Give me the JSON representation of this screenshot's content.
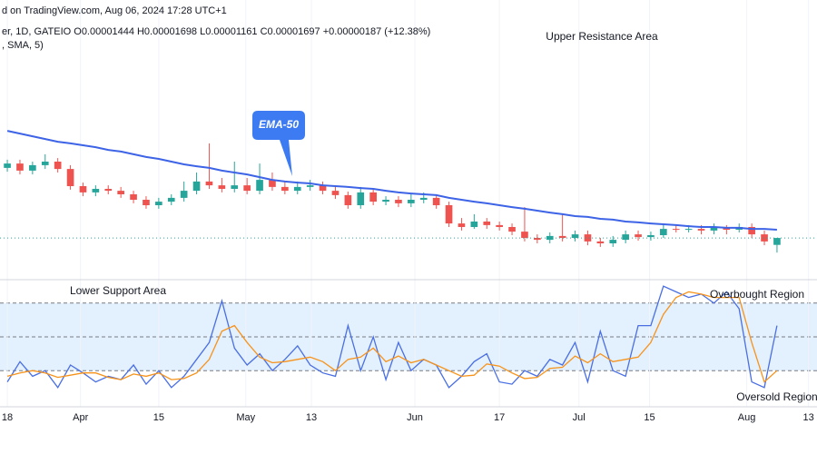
{
  "chart_data": [
    {
      "type": "candlestick",
      "source": "d on TradingView.com, Aug 06, 2024 17:28 UTC+1",
      "symbol_line": "er, 1D, GATEIO  O0.00001444  H0.00001698  L0.00001161  C0.00001697  +0.00000187 (+12.38%)",
      "annotations": [
        "Upper Resistance Area"
      ],
      "xlim": [
        -0.58,
        64.17
      ],
      "ylim": [
        2e-06,
        9.6e-05
      ],
      "up_color": "#26a69a",
      "down_color": "#ef5350",
      "open": [
        4.27e-05,
        4.43e-05,
        4.17e-05,
        4.37e-05,
        4.5e-05,
        4.23e-05,
        3.6e-05,
        3.37e-05,
        3.5e-05,
        3.43e-05,
        3.3e-05,
        3.1e-05,
        2.9e-05,
        3.03e-05,
        3.17e-05,
        3.43e-05,
        3.77e-05,
        3.63e-05,
        3.5e-05,
        3.63e-05,
        3.43e-05,
        3.83e-05,
        3.57e-05,
        3.43e-05,
        3.57e-05,
        3.63e-05,
        3.43e-05,
        3.27e-05,
        2.9e-05,
        3.37e-05,
        3.03e-05,
        3.1e-05,
        2.97e-05,
        3.1e-05,
        3.17e-05,
        2.9e-05,
        2.23e-05,
        2.1e-05,
        2.3e-05,
        2.17e-05,
        2.1e-05,
        1.93e-05,
        1.7e-05,
        1.63e-05,
        1.77e-05,
        1.7e-05,
        1.83e-05,
        1.57e-05,
        1.5e-05,
        1.63e-05,
        1.83e-05,
        1.73e-05,
        1.8e-05,
        2.03e-05,
        2e-05,
        2.03e-05,
        1.97e-05,
        2.07e-05,
        2e-05,
        2.1e-05,
        1.83e-05,
        1.444e-05
      ],
      "high": [
        4.57e-05,
        4.57e-05,
        4.5e-05,
        4.77e-05,
        4.63e-05,
        4.37e-05,
        3.73e-05,
        3.63e-05,
        3.63e-05,
        3.57e-05,
        3.43e-05,
        3.23e-05,
        3.17e-05,
        3.3e-05,
        3.77e-05,
        4.1e-05,
        5.17e-05,
        3.9e-05,
        4.5e-05,
        3.9e-05,
        4.43e-05,
        4.1e-05,
        3.77e-05,
        3.77e-05,
        3.83e-05,
        3.77e-05,
        3.63e-05,
        3.4e-05,
        3.57e-05,
        3.5e-05,
        3.23e-05,
        3.23e-05,
        3.3e-05,
        3.37e-05,
        3.3e-05,
        3.03e-05,
        2.43e-05,
        2.57e-05,
        2.43e-05,
        2.3e-05,
        2.23e-05,
        2.83e-05,
        1.83e-05,
        1.9e-05,
        2.57e-05,
        1.97e-05,
        1.97e-05,
        1.7e-05,
        1.77e-05,
        1.97e-05,
        1.97e-05,
        1.93e-05,
        2.17e-05,
        2.17e-05,
        2.17e-05,
        2.17e-05,
        2.23e-05,
        2.17e-05,
        2.23e-05,
        2.23e-05,
        1.97e-05,
        1.698e-05
      ],
      "low": [
        4.13e-05,
        4.03e-05,
        4.03e-05,
        4.23e-05,
        4.1e-05,
        3.47e-05,
        3.23e-05,
        3.23e-05,
        3.3e-05,
        3.17e-05,
        2.97e-05,
        2.77e-05,
        2.77e-05,
        2.9e-05,
        3.03e-05,
        3.3e-05,
        3.5e-05,
        3.37e-05,
        3.37e-05,
        3.3e-05,
        3.3e-05,
        3.43e-05,
        3.3e-05,
        3.3e-05,
        3.43e-05,
        3.3e-05,
        3.13e-05,
        2.77e-05,
        2.77e-05,
        2.9e-05,
        2.9e-05,
        2.83e-05,
        2.83e-05,
        2.97e-05,
        2.77e-05,
        2.1e-05,
        1.97e-05,
        2.03e-05,
        2.03e-05,
        1.97e-05,
        1.8e-05,
        1.57e-05,
        1.5e-05,
        1.5e-05,
        1.57e-05,
        1.57e-05,
        1.43e-05,
        1.37e-05,
        1.37e-05,
        1.5e-05,
        1.6e-05,
        1.6e-05,
        1.7e-05,
        1.9e-05,
        1.9e-05,
        1.83e-05,
        1.83e-05,
        1.83e-05,
        1.9e-05,
        1.7e-05,
        1.43e-05,
        1.161e-05
      ],
      "close": [
        4.43e-05,
        4.17e-05,
        4.37e-05,
        4.5e-05,
        4.23e-05,
        3.6e-05,
        3.37e-05,
        3.5e-05,
        3.43e-05,
        3.3e-05,
        3.1e-05,
        2.9e-05,
        3.03e-05,
        3.17e-05,
        3.43e-05,
        3.77e-05,
        3.63e-05,
        3.5e-05,
        3.63e-05,
        3.43e-05,
        3.83e-05,
        3.57e-05,
        3.43e-05,
        3.57e-05,
        3.63e-05,
        3.43e-05,
        3.27e-05,
        2.9e-05,
        3.37e-05,
        3.03e-05,
        3.1e-05,
        2.97e-05,
        3.1e-05,
        3.17e-05,
        2.9e-05,
        2.23e-05,
        2.1e-05,
        2.3e-05,
        2.17e-05,
        2.1e-05,
        1.93e-05,
        1.7e-05,
        1.63e-05,
        1.77e-05,
        1.7e-05,
        1.83e-05,
        1.57e-05,
        1.5e-05,
        1.63e-05,
        1.83e-05,
        1.73e-05,
        1.8e-05,
        2.03e-05,
        2e-05,
        2.03e-05,
        1.97e-05,
        2.07e-05,
        2e-05,
        2.1e-05,
        1.83e-05,
        1.57e-05,
        1.697e-05
      ],
      "series": [
        {
          "name": "EMA-50",
          "color": "#3d63e6",
          "values": [
            5.63e-05,
            5.53e-05,
            5.43e-05,
            5.33e-05,
            5.23e-05,
            5.17e-05,
            5.1e-05,
            5.03e-05,
            4.93e-05,
            4.87e-05,
            4.77e-05,
            4.67e-05,
            4.6e-05,
            4.5e-05,
            4.4e-05,
            4.33e-05,
            4.27e-05,
            4.17e-05,
            4.1e-05,
            4.03e-05,
            3.93e-05,
            3.83e-05,
            3.77e-05,
            3.73e-05,
            3.7e-05,
            3.63e-05,
            3.6e-05,
            3.57e-05,
            3.53e-05,
            3.5e-05,
            3.43e-05,
            3.37e-05,
            3.33e-05,
            3.3e-05,
            3.27e-05,
            3.17e-05,
            3.1e-05,
            3.03e-05,
            2.97e-05,
            2.9e-05,
            2.83e-05,
            2.77e-05,
            2.7e-05,
            2.63e-05,
            2.57e-05,
            2.5e-05,
            2.47e-05,
            2.4e-05,
            2.37e-05,
            2.3e-05,
            2.27e-05,
            2.23e-05,
            2.2e-05,
            2.17e-05,
            2.13e-05,
            2.1e-05,
            2.1e-05,
            2.07e-05,
            2.07e-05,
            2.03e-05,
            2.03e-05,
            2e-05
          ]
        }
      ]
    },
    {
      "type": "line",
      "indicator_line": ", SMA, 5)",
      "annotations": [
        "Lower Support Area",
        "Overbought Region",
        "Oversold Region"
      ],
      "xlim": [
        -0.58,
        64.17
      ],
      "ylim": [
        0,
        100
      ],
      "levels": [
        80,
        50,
        20
      ],
      "band_color": "#e3f0fd",
      "xticks": [
        {
          "value": 0,
          "label": "18"
        },
        {
          "value": 5.8,
          "label": "Apr"
        },
        {
          "value": 12,
          "label": "15"
        },
        {
          "value": 18.9,
          "label": "May"
        },
        {
          "value": 24.1,
          "label": "13"
        },
        {
          "value": 32.3,
          "label": "Jun"
        },
        {
          "value": 39,
          "label": "17"
        },
        {
          "value": 45.3,
          "label": "Jul"
        },
        {
          "value": 50.9,
          "label": "15"
        },
        {
          "value": 58.6,
          "label": "Aug"
        },
        {
          "value": 63.5,
          "label": "13"
        }
      ],
      "series": [
        {
          "color": "#4a6fe3",
          "values": [
            10,
            28,
            15,
            20,
            5,
            25,
            18,
            10,
            15,
            12,
            25,
            8,
            20,
            5,
            15,
            30,
            45,
            82,
            40,
            25,
            35,
            20,
            30,
            42,
            25,
            18,
            15,
            60,
            20,
            50,
            12,
            45,
            20,
            30,
            25,
            5,
            15,
            28,
            35,
            10,
            8,
            20,
            15,
            30,
            25,
            45,
            10,
            55,
            20,
            15,
            60,
            60,
            95,
            90,
            85,
            88,
            80,
            90,
            75,
            10,
            5,
            60
          ]
        },
        {
          "color": "#f7931a",
          "values": [
            15,
            18,
            20,
            18,
            14,
            16,
            18,
            18,
            14,
            12,
            17,
            15,
            18,
            12,
            13,
            18,
            30,
            55,
            60,
            45,
            32,
            27,
            28,
            30,
            32,
            28,
            20,
            30,
            32,
            40,
            28,
            33,
            27,
            30,
            25,
            20,
            15,
            16,
            26,
            24,
            18,
            13,
            14,
            22,
            23,
            33,
            27,
            35,
            28,
            30,
            32,
            45,
            70,
            85,
            90,
            88,
            85,
            85,
            85,
            45,
            10,
            20
          ]
        }
      ]
    }
  ]
}
